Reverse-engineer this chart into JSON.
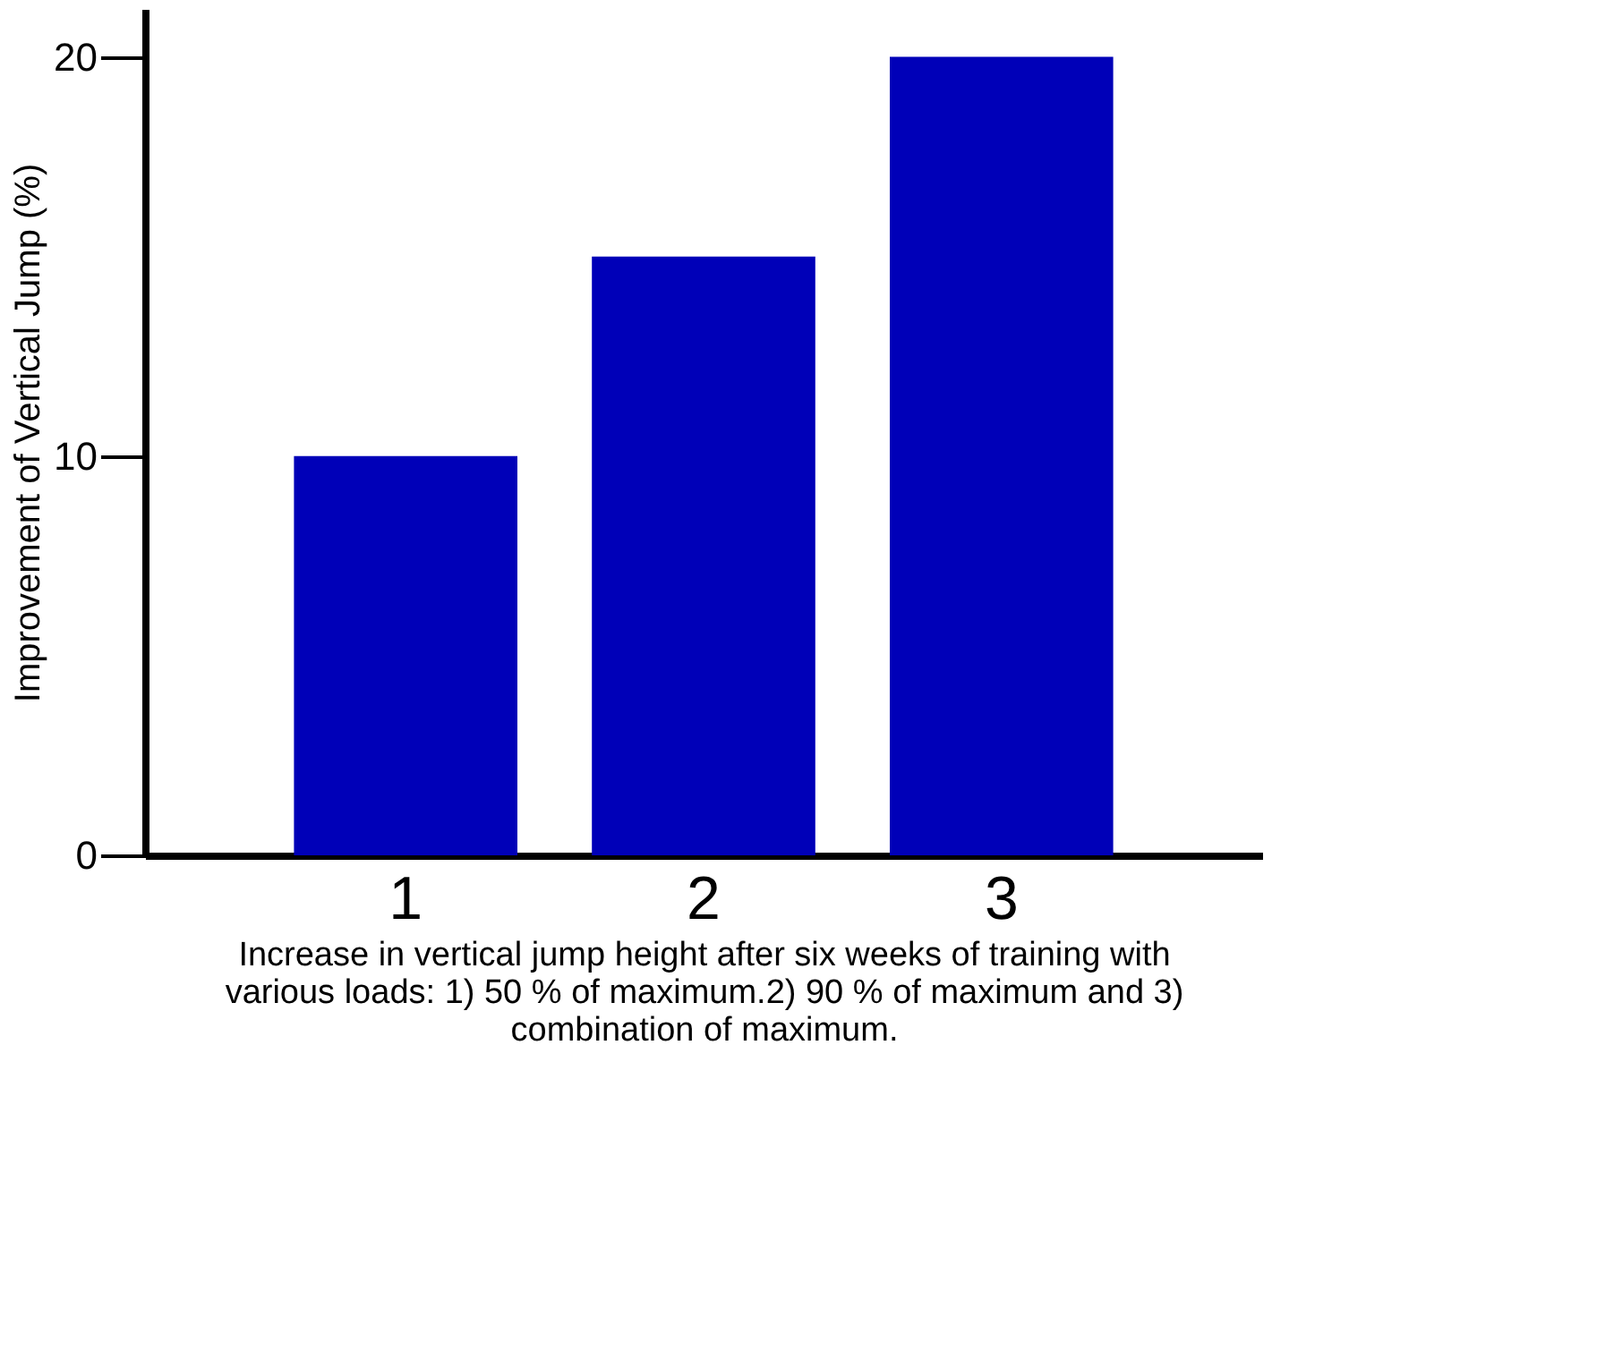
{
  "chart_data": {
    "type": "bar",
    "xlabel": "Increase in vertical jump height after six weeks of training with various loads: 1) 50 % of maximum.2) 90 % of maximum and 3) combination of maximum.",
    "ylabel": "Improvement of Vertical Jump (%)",
    "categories": [
      "1",
      "2",
      "3"
    ],
    "series": [
      {
        "color": "#0000b8",
        "values": [
          10,
          15,
          20
        ]
      }
    ],
    "ylim": [
      0,
      21.2
    ],
    "yticks": [
      0,
      10,
      20
    ],
    "grid": false
  }
}
